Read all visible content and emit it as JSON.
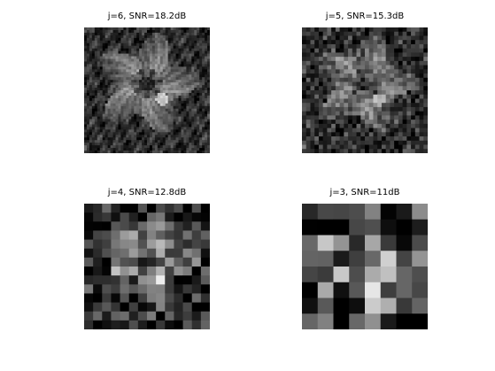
{
  "panels": [
    {
      "title": "j=6, SNR=18.2dB",
      "grid": 24,
      "description_icon": "hibiscus-flower-image"
    },
    {
      "title": "j=5, SNR=15.3dB",
      "grid": 32,
      "description_icon": "hibiscus-flower-image"
    },
    {
      "title": "j=4, SNR=12.8dB",
      "grid": 12,
      "description_icon": "hibiscus-flower-image"
    },
    {
      "title": "j=3, SNR=11dB",
      "grid": 8,
      "description_icon": "hibiscus-flower-image"
    }
  ],
  "colors": {
    "background": "#ffffff",
    "title_text": "#000000"
  }
}
